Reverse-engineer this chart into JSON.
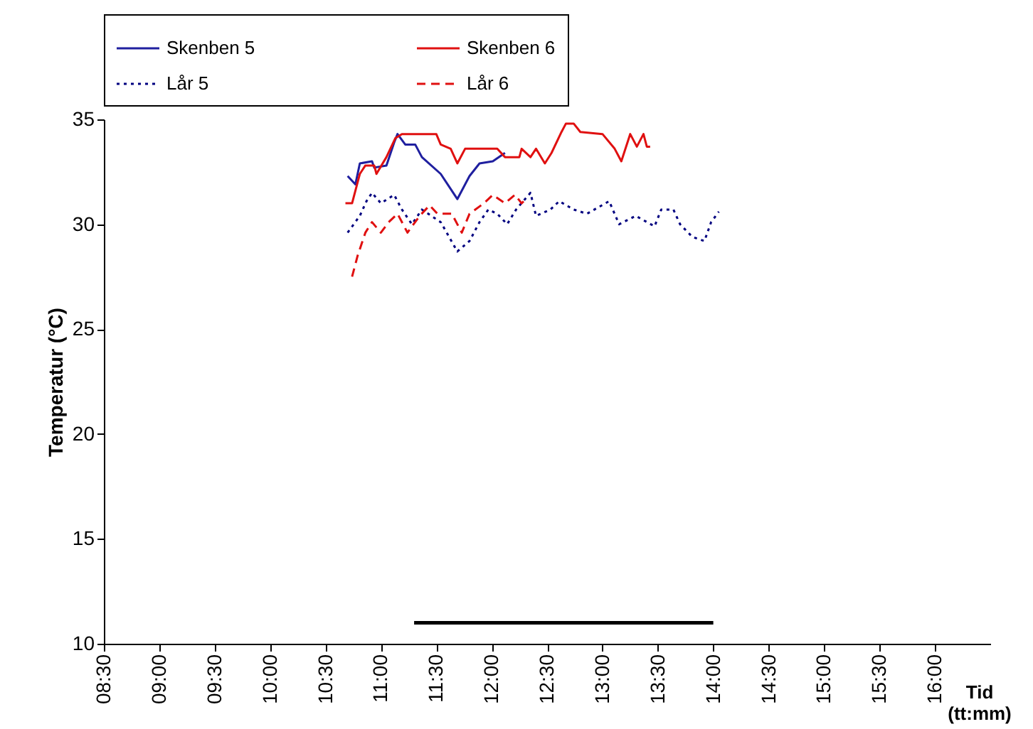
{
  "chart_data": {
    "type": "line",
    "xlabel": "Tid (tt:mm)",
    "ylabel": "Temperatur (°C)",
    "xlim": [
      8.5,
      16.5
    ],
    "xticks": [
      {
        "value": 8.5,
        "label": "08:30"
      },
      {
        "value": 9,
        "label": "09:00"
      },
      {
        "value": 9.5,
        "label": "09:30"
      },
      {
        "value": 10,
        "label": "10:00"
      },
      {
        "value": 10.5,
        "label": "10:30"
      },
      {
        "value": 11,
        "label": "11:00"
      },
      {
        "value": 11.5,
        "label": "11:30"
      },
      {
        "value": 12,
        "label": "12:00"
      },
      {
        "value": 12.5,
        "label": "12:30"
      },
      {
        "value": 13,
        "label": "13:00"
      },
      {
        "value": 13.5,
        "label": "13:30"
      },
      {
        "value": 14,
        "label": "14:00"
      },
      {
        "value": 14.5,
        "label": "14:30"
      },
      {
        "value": 15,
        "label": "15:00"
      },
      {
        "value": 15.5,
        "label": "15:30"
      },
      {
        "value": 16,
        "label": "16:00"
      }
    ],
    "ylim": [
      10,
      35
    ],
    "yticks": [
      10,
      15,
      20,
      25,
      30,
      35
    ],
    "grid": false,
    "legend": "top",
    "marker": "none",
    "series": [
      {
        "name": "Skenben 5",
        "color": "#1f1f9f",
        "line_style": "solid",
        "x": [
          10.7,
          10.77,
          10.81,
          10.92,
          10.94,
          11.05,
          11.12,
          11.15,
          11.22,
          11.31,
          11.37,
          11.54,
          11.69,
          11.8,
          11.89,
          12.01,
          12.12
        ],
        "values": [
          32.3,
          31.9,
          32.9,
          33.0,
          32.7,
          32.8,
          33.9,
          34.3,
          33.8,
          33.8,
          33.2,
          32.4,
          31.2,
          32.3,
          32.9,
          33.0,
          33.4
        ]
      },
      {
        "name": "Skenben 6",
        "color": "#e01010",
        "line_style": "solid",
        "x": [
          10.68,
          10.74,
          10.81,
          10.86,
          10.94,
          10.96,
          11.05,
          11.13,
          11.19,
          11.28,
          11.5,
          11.54,
          11.63,
          11.69,
          11.76,
          12.05,
          12.12,
          12.25,
          12.27,
          12.35,
          12.4,
          12.48,
          12.54,
          12.63,
          12.67,
          12.74,
          12.8,
          13.0,
          13.11,
          13.17,
          13.25,
          13.31,
          13.37,
          13.4,
          13.43
        ],
        "values": [
          31.0,
          31.0,
          32.4,
          32.8,
          32.8,
          32.4,
          33.2,
          34.1,
          34.3,
          34.3,
          34.3,
          33.8,
          33.6,
          32.9,
          33.6,
          33.6,
          33.2,
          33.2,
          33.6,
          33.2,
          33.6,
          32.9,
          33.4,
          34.4,
          34.8,
          34.8,
          34.4,
          34.3,
          33.6,
          33.0,
          34.3,
          33.7,
          34.3,
          33.7,
          33.7
        ]
      },
      {
        "name": "Lår 5",
        "color": "#000080",
        "line_style": "dotted",
        "x": [
          10.7,
          10.81,
          10.87,
          10.92,
          11.0,
          11.12,
          11.19,
          11.28,
          11.37,
          11.54,
          11.69,
          11.8,
          11.89,
          11.97,
          12.05,
          12.14,
          12.22,
          12.35,
          12.4,
          12.53,
          12.61,
          12.74,
          12.86,
          13.06,
          13.15,
          13.3,
          13.47,
          13.53,
          13.64,
          13.7,
          13.81,
          13.92,
          13.98,
          14.05
        ],
        "values": [
          29.6,
          30.4,
          31.1,
          31.5,
          31.0,
          31.4,
          30.7,
          30.0,
          30.7,
          30.1,
          28.7,
          29.2,
          30.1,
          30.7,
          30.5,
          30.0,
          30.7,
          31.5,
          30.4,
          30.7,
          31.1,
          30.7,
          30.5,
          31.1,
          30.0,
          30.4,
          29.9,
          30.7,
          30.7,
          30.0,
          29.4,
          29.2,
          30.1,
          30.6
        ]
      },
      {
        "name": "Lår 6",
        "color": "#e01010",
        "line_style": "dashed",
        "x": [
          10.74,
          10.79,
          10.86,
          10.92,
          11.0,
          11.07,
          11.15,
          11.24,
          11.35,
          11.44,
          11.51,
          11.64,
          11.73,
          11.8,
          11.93,
          12.01,
          12.12,
          12.21,
          12.27,
          12.31
        ],
        "values": [
          27.5,
          28.5,
          29.6,
          30.1,
          29.6,
          30.1,
          30.5,
          29.6,
          30.4,
          30.9,
          30.5,
          30.5,
          29.6,
          30.5,
          31.0,
          31.4,
          31.0,
          31.4,
          31.0,
          31.2
        ]
      },
      {
        "color": "#000000",
        "line_style": "solid",
        "x": [
          11.3,
          14.0
        ],
        "values": [
          11,
          11
        ]
      }
    ]
  }
}
